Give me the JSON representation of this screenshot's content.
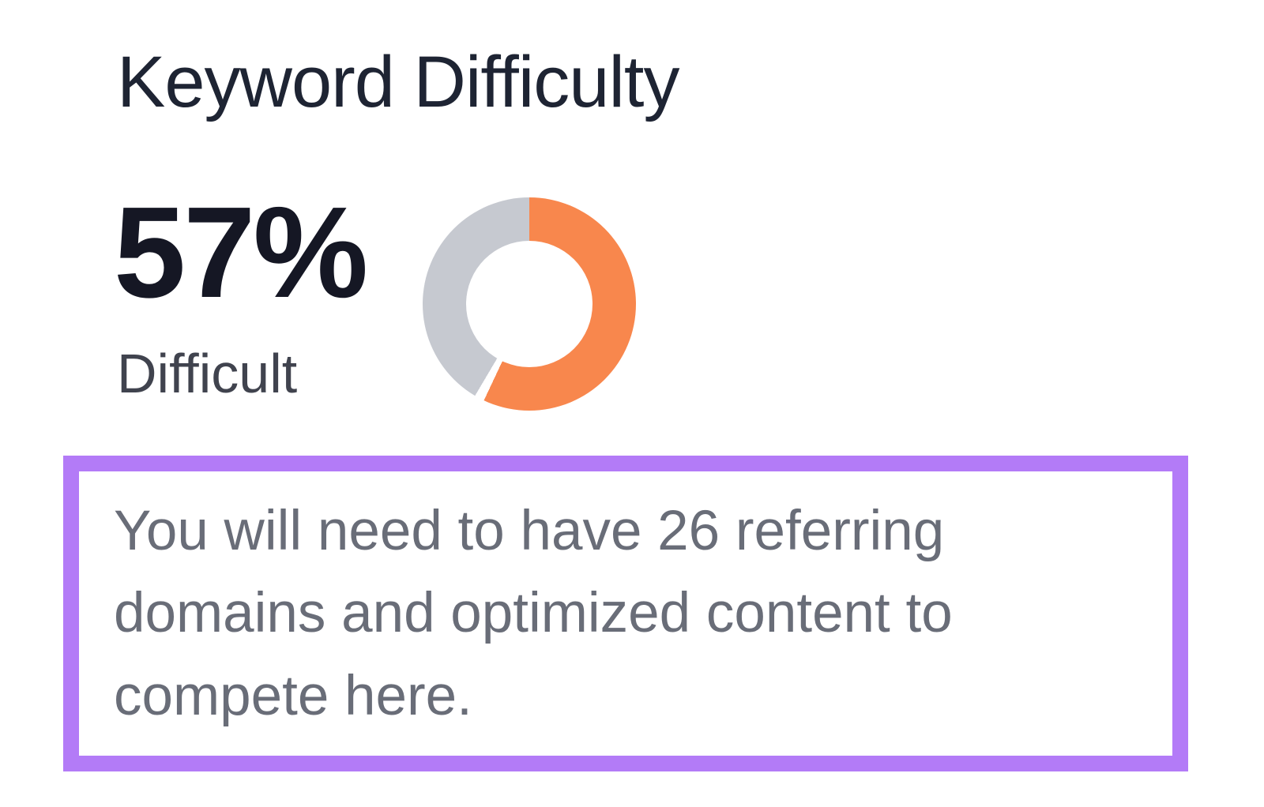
{
  "widget": {
    "title": "Keyword Difficulty",
    "value": "57%",
    "level_label": "Difficult",
    "description": "You will need to have 26 referring domains and optimized content to compete here."
  },
  "chart_data": {
    "type": "pie",
    "donut": true,
    "title": "Keyword Difficulty",
    "percent": 57,
    "gap_percent": 1.5,
    "start_angle_deg": 0,
    "direction": "clockwise",
    "segments": [
      {
        "label": "Keyword Difficulty",
        "value": 57,
        "color": "#f8874d"
      },
      {
        "label": "Remaining",
        "value": 43,
        "color": "#c6c9d0"
      }
    ],
    "legend": "none",
    "center_label": "57% Difficult"
  },
  "colors": {
    "accent_orange": "#f8874d",
    "track_gray": "#c6c9d0",
    "highlight_purple": "#b37bf7",
    "title_text": "#1e2433",
    "value_text": "#151724",
    "level_text": "#40434e",
    "description_text": "#696d78",
    "background": "#ffffff"
  }
}
